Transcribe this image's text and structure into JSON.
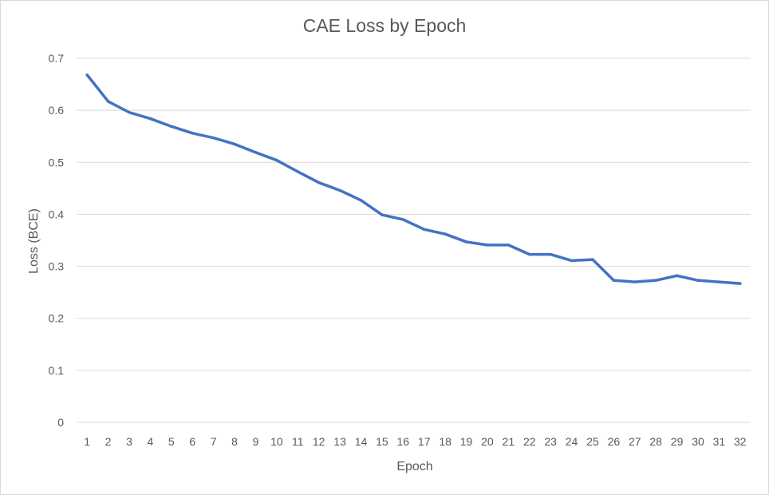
{
  "chart_data": {
    "type": "line",
    "title": "CAE Loss by Epoch",
    "xlabel": "Epoch",
    "ylabel": "Loss (BCE)",
    "ylim": [
      0,
      0.7
    ],
    "yticks": [
      0,
      0.1,
      0.2,
      0.3,
      0.4,
      0.5,
      0.6,
      0.7
    ],
    "ytick_labels": [
      "0",
      "0.1",
      "0.2",
      "0.3",
      "0.4",
      "0.5",
      "0.6",
      "0.7"
    ],
    "categories": [
      "1",
      "2",
      "3",
      "4",
      "5",
      "6",
      "7",
      "8",
      "9",
      "10",
      "11",
      "12",
      "13",
      "14",
      "15",
      "16",
      "17",
      "18",
      "19",
      "20",
      "21",
      "22",
      "23",
      "24",
      "25",
      "26",
      "27",
      "28",
      "29",
      "30",
      "31",
      "32"
    ],
    "grid": true,
    "legend": "none",
    "series": [
      {
        "name": "Loss (BCE)",
        "color": "#4472C4",
        "values": [
          0.668,
          0.617,
          0.596,
          0.584,
          0.569,
          0.556,
          0.547,
          0.535,
          0.519,
          0.504,
          0.482,
          0.461,
          0.446,
          0.427,
          0.399,
          0.39,
          0.371,
          0.362,
          0.347,
          0.341,
          0.341,
          0.323,
          0.323,
          0.311,
          0.313,
          0.273,
          0.27,
          0.273,
          0.282,
          0.273,
          0.27,
          0.267
        ]
      }
    ]
  },
  "colors": {
    "gridline": "#D9D9D9",
    "text": "#595959",
    "frame": "#D9D9D9"
  }
}
